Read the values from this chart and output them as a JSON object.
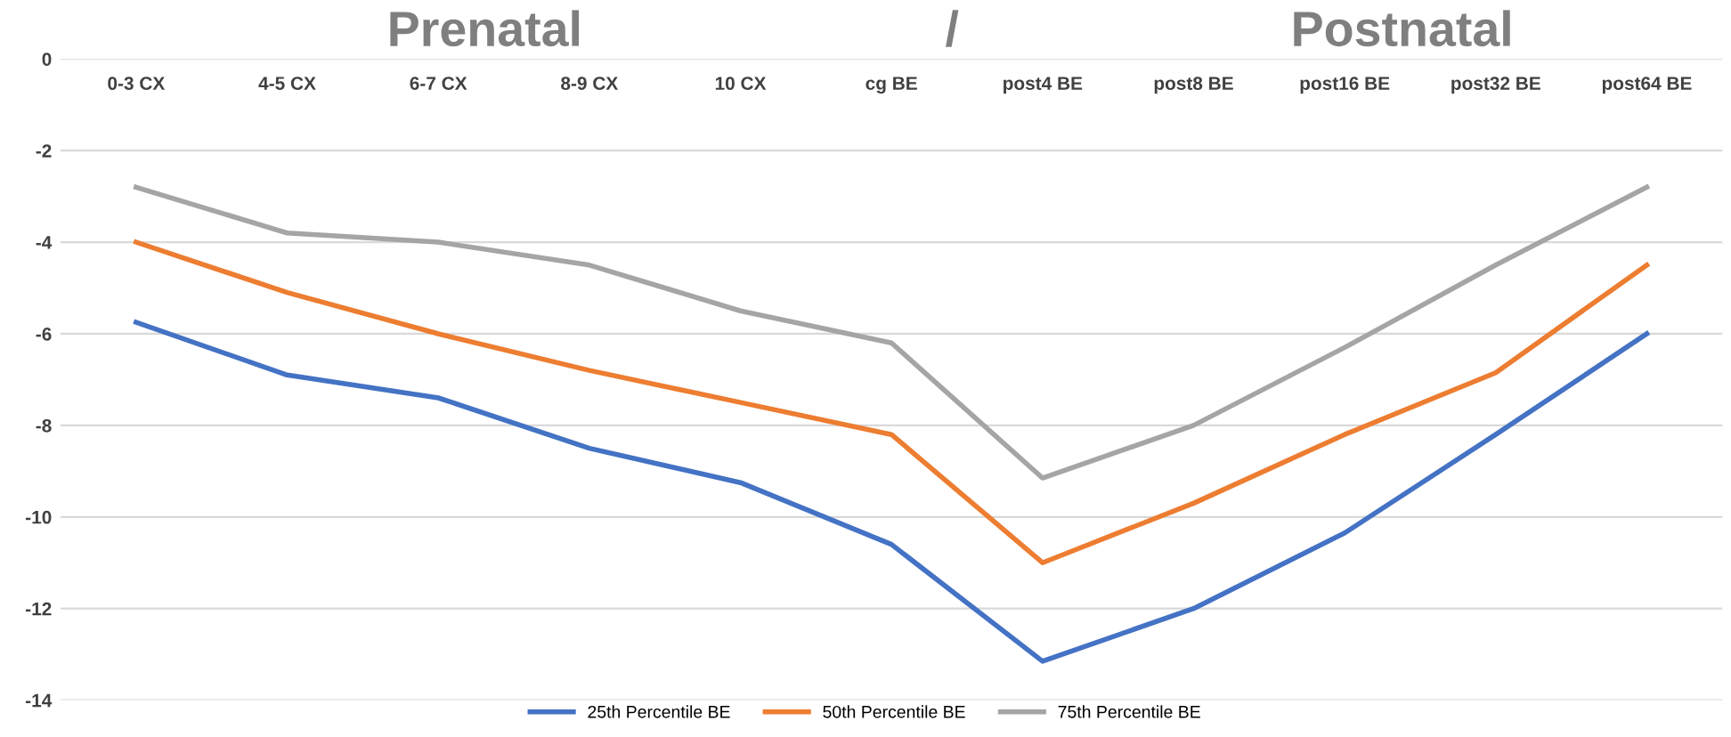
{
  "chart_data": {
    "type": "line",
    "annotations": [
      "Prenatal",
      "/",
      "Postnatal"
    ],
    "categories": [
      "0-3 CX",
      "4-5 CX",
      "6-7 CX",
      "8-9 CX",
      "10 CX",
      "cg BE",
      "post4 BE",
      "post8 BE",
      "post16 BE",
      "post32 BE",
      "post64 BE"
    ],
    "series": [
      {
        "name": "25th Percentile BE",
        "color": "#4472c4",
        "values": [
          -5.75,
          -6.9,
          -7.4,
          -8.5,
          -9.25,
          -10.6,
          -13.15,
          -12.0,
          -10.35,
          -8.2,
          -6.0
        ]
      },
      {
        "name": "50th Percentile BE",
        "color": "#ed7d31",
        "values": [
          -4.0,
          -5.1,
          -6.0,
          -6.8,
          -7.5,
          -8.2,
          -11.0,
          -9.7,
          -8.2,
          -6.85,
          -4.5
        ]
      },
      {
        "name": "75th Percentile BE",
        "color": "#a5a5a5",
        "values": [
          -2.8,
          -3.8,
          -4.0,
          -4.5,
          -5.5,
          -6.2,
          -9.15,
          -8.0,
          -6.3,
          -4.5,
          -2.8
        ]
      }
    ],
    "ylim": [
      -14,
      0
    ],
    "yticks": [
      -14,
      -12,
      -10,
      -8,
      -6,
      -4,
      -2,
      0
    ],
    "grid": "y",
    "legend": "bottom",
    "marker": "none",
    "line_style": "solid"
  }
}
